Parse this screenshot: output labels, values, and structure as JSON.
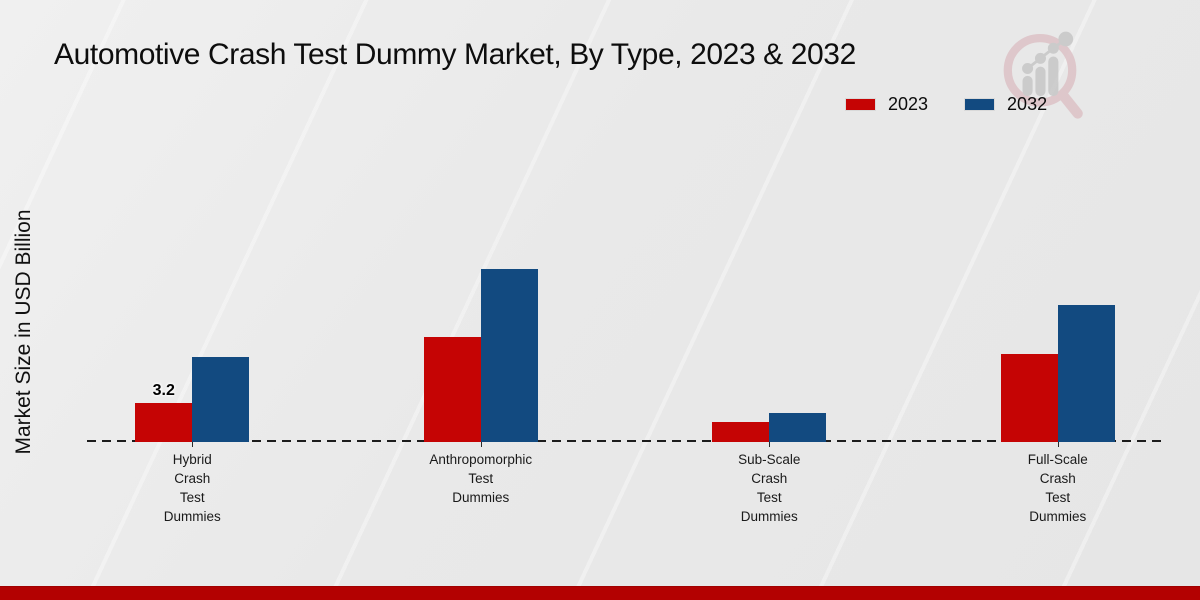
{
  "page": {
    "background_color": "#e9e9e9",
    "footer_bar_color": "#b30101"
  },
  "logo": {
    "icon": "magnifier-growth-chart-watermark-logo",
    "ring_color": "#ddc2c6",
    "bars_color": "#c7c7c7"
  },
  "chart_data": {
    "type": "bar",
    "title": "Automotive Crash Test Dummy Market, By Type, 2023 & 2032",
    "ylabel": "Market Size in USD Billion",
    "xlabel": "",
    "categories": [
      "Hybrid\nCrash\nTest\nDummies",
      "Anthropomorphic\nTest\nDummies",
      "Sub-Scale\nCrash\nTest\nDummies",
      "Full-Scale\nCrash\nTest\nDummies"
    ],
    "series": [
      {
        "name": "2023",
        "color": "#c50404",
        "values": [
          3.2,
          8.6,
          1.6,
          7.2
        ]
      },
      {
        "name": "2032",
        "color": "#124a80",
        "values": [
          7.0,
          14.2,
          2.4,
          11.2
        ]
      }
    ],
    "annotations": [
      {
        "series": "2023",
        "category_index": 0,
        "text": "3.2"
      }
    ],
    "ylim": [
      0,
      16
    ],
    "y_axis_ticks_visible": false,
    "grid": false,
    "baseline_style": "dashed",
    "legend_position": "top-right"
  }
}
